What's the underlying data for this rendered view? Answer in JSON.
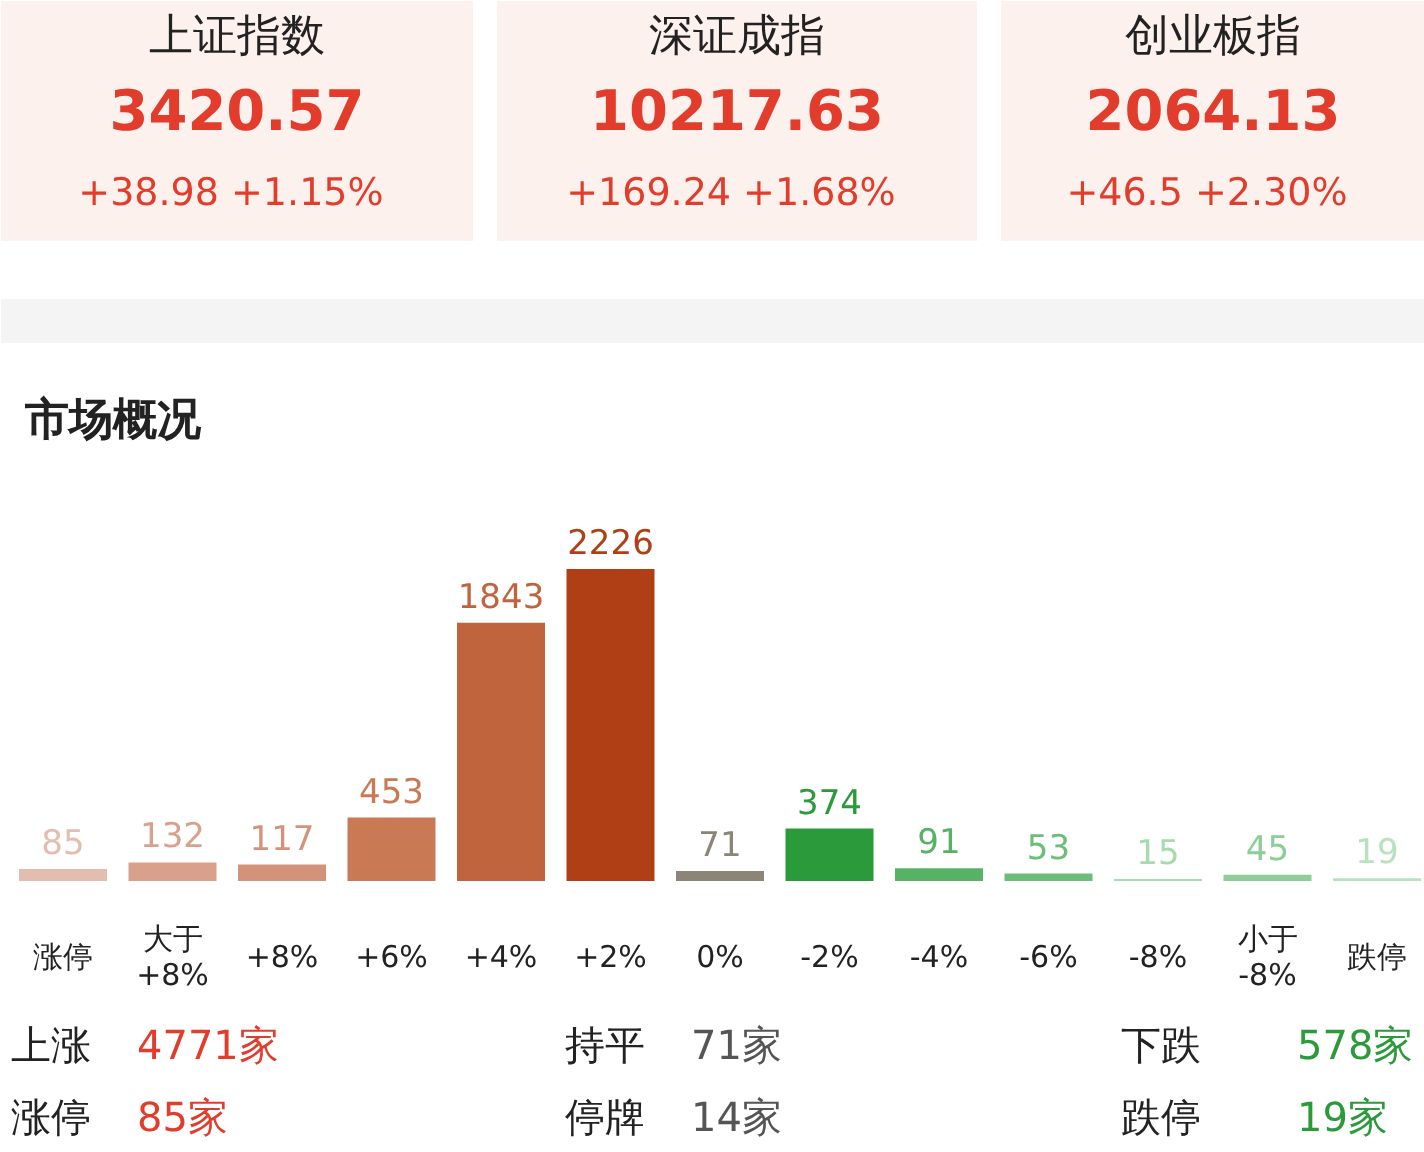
{
  "chart_data": [
    {
      "type": "other",
      "annotations": [
        "上证指数",
        "3420.57",
        "+38.98  +1.15%",
        "深证成指",
        "10217.63",
        "+169.24  +1.68%",
        "创业板指",
        "2064.13",
        "+46.5  +2.30%"
      ]
    },
    {
      "type": "bar",
      "title": "市场概况",
      "categories": [
        "涨停",
        "大于\n+8%",
        "+8%",
        "+6%",
        "+4%",
        "+2%",
        "0%",
        "-2%",
        "-4%",
        "-6%",
        "-8%",
        "小于\n-8%",
        "跌停"
      ],
      "values": [
        85,
        132,
        117,
        453,
        1843,
        2226,
        71,
        374,
        91,
        53,
        15,
        45,
        19
      ],
      "colors": [
        "#e3bdb0",
        "#d9a08c",
        "#d3937a",
        "#c97a54",
        "#c0643e",
        "#b03f16",
        "#8c8476",
        "#2b9a3b",
        "#58b265",
        "#6cbd79",
        "#a8dab0",
        "#8dce98",
        "#b7e2bd"
      ],
      "data_labels": true,
      "grid": false,
      "annotations": [
        "上涨",
        "4771家",
        "持平",
        "71家",
        "下跌",
        "578家",
        "涨停",
        "85家",
        "停牌",
        "14家",
        "跌停",
        "19家"
      ]
    }
  ]
}
